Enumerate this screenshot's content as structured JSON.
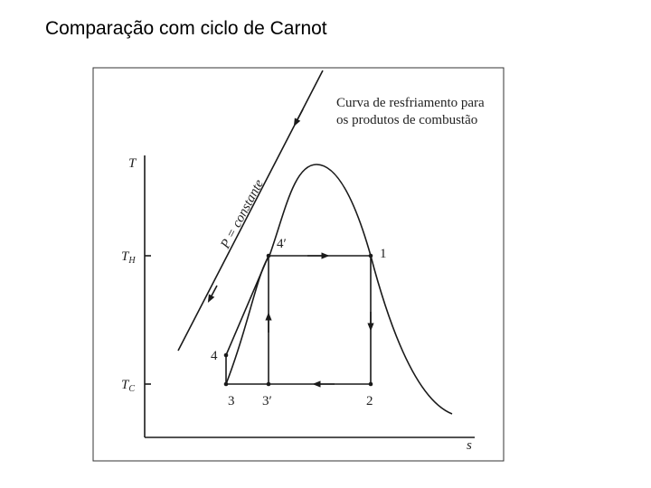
{
  "header": {
    "title": "Comparação com ciclo de Carnot"
  },
  "diagram": {
    "caption": [
      "Curva de resfriamento para",
      "os produtos de combustão"
    ],
    "pressure_label": "P = constante",
    "axes": {
      "y": "T",
      "x": "s",
      "t_high": {
        "main": "T",
        "sub": "H"
      },
      "t_low": {
        "main": "T",
        "sub": "C"
      }
    },
    "points": [
      "1",
      "2",
      "3",
      "3′",
      "4",
      "4′"
    ]
  }
}
